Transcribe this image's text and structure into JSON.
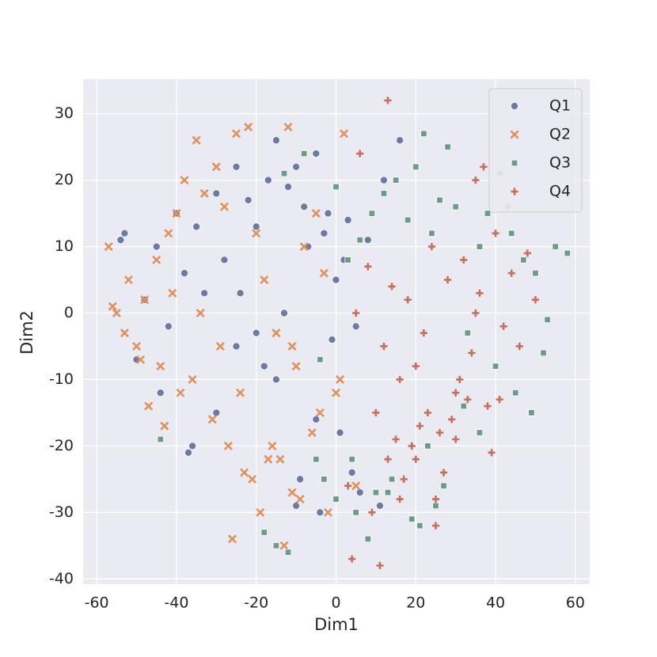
{
  "chart_data": {
    "type": "scatter",
    "x_label": "Dim1",
    "y_label": "Dim2",
    "xlim": [
      -63.4,
      63.6
    ],
    "ylim": [
      -40.8,
      35.2
    ],
    "xticks": [
      -60,
      -40,
      -20,
      0,
      20,
      40,
      60
    ],
    "yticks": [
      -40,
      -30,
      -20,
      -10,
      0,
      10,
      20,
      30
    ],
    "grid": true,
    "legend": "upper right",
    "series": [
      {
        "name": "Q1",
        "color": "#6b7ba6",
        "marker": "circle",
        "x": [
          -53,
          -54,
          -45,
          -40,
          -35,
          -30,
          -25,
          -22,
          -20,
          -17,
          -15,
          -12,
          -10,
          -8,
          -5,
          -3,
          0,
          2,
          5,
          -28,
          -33,
          -38,
          -42,
          -48,
          -50,
          -18,
          -13,
          -7,
          -2,
          3,
          8,
          12,
          16,
          -25,
          -30,
          -36,
          -44,
          -9,
          -4,
          1,
          6,
          -15,
          -20,
          -37,
          -5,
          -10,
          11,
          -24,
          -1,
          4
        ],
        "y": [
          12,
          11,
          10,
          15,
          13,
          18,
          22,
          17,
          13,
          20,
          26,
          19,
          22,
          16,
          24,
          12,
          5,
          8,
          -2,
          8,
          3,
          6,
          -2,
          2,
          -7,
          -8,
          0,
          10,
          15,
          14,
          11,
          20,
          26,
          -5,
          -15,
          -20,
          -12,
          -25,
          -30,
          -18,
          -27,
          -10,
          -3,
          -21,
          -16,
          -29,
          -29,
          3,
          -4,
          -24
        ]
      },
      {
        "name": "Q2",
        "color": "#e0915c",
        "marker": "x",
        "x": [
          -57,
          -55,
          -52,
          -50,
          -48,
          -45,
          -42,
          -40,
          -38,
          -35,
          -33,
          -30,
          -28,
          -25,
          -22,
          -20,
          -18,
          -15,
          -12,
          -10,
          -8,
          -5,
          -3,
          0,
          2,
          5,
          -56,
          -53,
          -47,
          -44,
          -41,
          -36,
          -31,
          -27,
          -23,
          -19,
          -14,
          -11,
          -6,
          -2,
          -49,
          -43,
          -39,
          -34,
          -29,
          -24,
          -21,
          -16,
          -13,
          -9,
          -4,
          1,
          -26,
          -17,
          -11
        ],
        "y": [
          10,
          0,
          5,
          -5,
          2,
          8,
          12,
          15,
          20,
          26,
          18,
          22,
          16,
          27,
          28,
          12,
          5,
          -3,
          28,
          -8,
          10,
          15,
          6,
          -12,
          27,
          -26,
          1,
          -3,
          -14,
          -8,
          3,
          -10,
          -16,
          -20,
          -24,
          -30,
          -22,
          -27,
          -18,
          -30,
          -7,
          -17,
          -12,
          0,
          -5,
          -12,
          -25,
          -20,
          -35,
          -28,
          -15,
          -10,
          -34,
          -22,
          -5
        ]
      },
      {
        "name": "Q3",
        "color": "#6a9c88",
        "marker": "square",
        "x": [
          -13,
          -8,
          -4,
          0,
          3,
          6,
          9,
          12,
          15,
          18,
          20,
          22,
          24,
          26,
          28,
          30,
          33,
          36,
          38,
          41,
          44,
          47,
          50,
          53,
          55,
          58,
          -5,
          0,
          5,
          10,
          14,
          19,
          23,
          27,
          32,
          36,
          40,
          45,
          49,
          52,
          -15,
          -18,
          -12,
          -3,
          4,
          8,
          13,
          21,
          25,
          -44
        ],
        "y": [
          21,
          24,
          -7,
          19,
          8,
          11,
          15,
          18,
          20,
          14,
          22,
          27,
          12,
          17,
          25,
          16,
          -3,
          10,
          15,
          21,
          12,
          8,
          6,
          -1,
          10,
          9,
          -22,
          -28,
          -30,
          -27,
          -25,
          -31,
          -20,
          -26,
          -14,
          -18,
          -8,
          -12,
          -15,
          -6,
          -35,
          -33,
          -36,
          -25,
          -22,
          -34,
          -27,
          -32,
          -29,
          -19
        ]
      },
      {
        "name": "Q4",
        "color": "#c76e5c",
        "marker": "plus",
        "x": [
          5,
          8,
          10,
          12,
          14,
          16,
          18,
          20,
          22,
          24,
          26,
          28,
          30,
          32,
          34,
          36,
          38,
          40,
          42,
          44,
          46,
          48,
          50,
          13,
          15,
          17,
          19,
          21,
          23,
          25,
          27,
          29,
          31,
          33,
          35,
          37,
          39,
          41,
          43,
          3,
          6,
          9,
          11,
          13,
          16,
          20,
          25,
          30,
          35,
          4
        ],
        "y": [
          0,
          7,
          -15,
          -5,
          4,
          -10,
          2,
          -8,
          -3,
          10,
          -18,
          5,
          -12,
          8,
          -6,
          3,
          -14,
          12,
          -2,
          6,
          -5,
          9,
          2,
          -22,
          -19,
          -25,
          -20,
          -17,
          -15,
          -28,
          -24,
          -16,
          -10,
          -13,
          20,
          22,
          -21,
          -13,
          16,
          -26,
          24,
          -30,
          -38,
          32,
          -28,
          -22,
          -32,
          -19,
          0,
          -37
        ]
      }
    ]
  }
}
